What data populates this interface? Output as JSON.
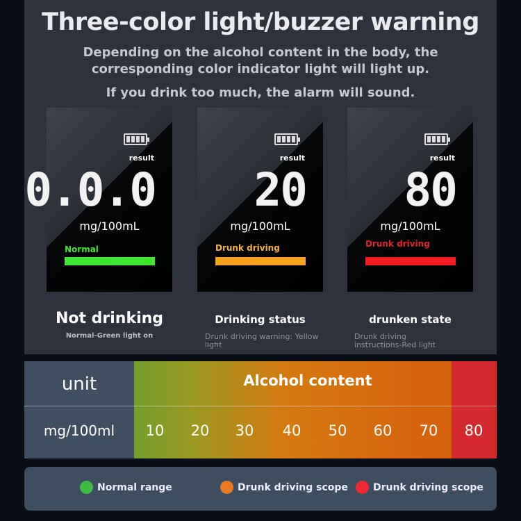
{
  "title": "Three-color light/buzzer warning",
  "subtitle_1": "Depending on the alcohol content in the body, the",
  "subtitle_2": "corresponding color indicator light will light up.",
  "subtitle_3": "If you drink too much, the alarm will sound.",
  "cards": [
    {
      "result_label": "result",
      "reading": "0.0.0",
      "unit": "mg/100mL",
      "state": "Normal",
      "color": "#3fe52f",
      "caption": "Not drinking",
      "description": "Normal-Green light on"
    },
    {
      "result_label": "result",
      "reading": "20",
      "unit": "mg/100mL",
      "state": "Drunk driving",
      "color": "#f5a320",
      "caption": "Drinking status",
      "description": "Drunk driving warning: Yellow light"
    },
    {
      "result_label": "result",
      "reading": "80",
      "unit": "mg/100mL",
      "state": "Drunk driving",
      "color": "#f01c22",
      "caption": "drunken state",
      "description": "Drunk driving instructions-Red light"
    }
  ],
  "table": {
    "unit_header": "unit",
    "content_header": "Alcohol content",
    "unit_value": "mg/100ml",
    "values": [
      "10",
      "20",
      "30",
      "40",
      "50",
      "60",
      "70",
      "80"
    ]
  },
  "legend": [
    {
      "label": "Normal range",
      "color": "#3dbb45"
    },
    {
      "label": "Drunk driving scope",
      "color": "#ec7a23"
    },
    {
      "label": "Drunk driving scope",
      "color": "#ef2a35"
    }
  ]
}
